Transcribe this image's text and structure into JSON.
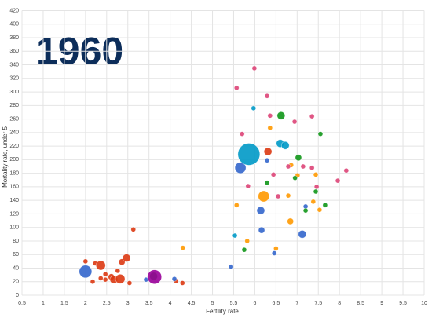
{
  "chart_data": {
    "type": "scatter",
    "annotation": "1960",
    "x_label": "Fertility rate",
    "y_label": "Mortality rate, under 5",
    "xlim": [
      0.5,
      10
    ],
    "ylim": [
      0,
      420
    ],
    "xticks": [
      0.5,
      1,
      1.5,
      2,
      2.5,
      3,
      3.5,
      4,
      4.5,
      5,
      5.5,
      6,
      6.5,
      7,
      7.5,
      8,
      8.5,
      9,
      9.5,
      10
    ],
    "yticks": [
      0,
      20,
      40,
      60,
      80,
      100,
      120,
      140,
      160,
      180,
      200,
      220,
      240,
      260,
      280,
      300,
      320,
      340,
      360,
      380,
      400,
      420
    ],
    "grid": true,
    "series": [
      {
        "color": "#dc3912",
        "x": [
          2.0,
          2.23,
          2.36,
          2.47,
          2.47,
          2.61,
          2.67,
          2.76,
          2.82,
          2.86,
          2.97,
          3.13,
          3.04,
          2.17,
          4.29,
          2.36,
          4.14,
          6.31
        ],
        "values": [
          50,
          47,
          44,
          31,
          23,
          27,
          23,
          36,
          24,
          49,
          55,
          97,
          18,
          20,
          18,
          25,
          21,
          212
        ],
        "sizes": [
          3,
          3,
          6,
          3,
          3,
          4,
          5,
          3,
          6,
          4,
          5,
          3,
          3,
          3,
          3,
          3,
          3,
          5
        ]
      },
      {
        "color": "#3366cc",
        "x": [
          2.0,
          3.43,
          4.1,
          5.66,
          6.14,
          6.16,
          7.12,
          6.46,
          5.44,
          6.29,
          7.2
        ],
        "values": [
          35,
          23,
          24,
          188,
          125,
          96,
          90,
          62,
          42,
          199,
          131
        ],
        "sizes": [
          8,
          3,
          3,
          7,
          5,
          4,
          5,
          3,
          3,
          3,
          3
        ]
      },
      {
        "color": "#0099c6",
        "x": [
          5.86,
          6.6,
          6.72,
          5.97,
          5.53
        ],
        "values": [
          208,
          224,
          221,
          276,
          88
        ],
        "sizes": [
          14,
          5,
          5,
          3,
          3
        ]
      },
      {
        "color": "#ff9900",
        "x": [
          4.3,
          6.21,
          5.57,
          6.36,
          6.86,
          7.01,
          6.79,
          6.84,
          7.38,
          7.53,
          5.82,
          6.5,
          7.44
        ],
        "values": [
          70,
          146,
          133,
          247,
          192,
          177,
          147,
          109,
          138,
          126,
          80,
          69,
          178
        ],
        "sizes": [
          3,
          7,
          3,
          3,
          3,
          3,
          3,
          4,
          3,
          3,
          3,
          3,
          3
        ]
      },
      {
        "color": "#109618",
        "x": [
          3.61,
          6.62,
          7.55,
          7.03,
          6.95,
          7.44,
          7.66,
          7.2,
          5.75,
          6.29
        ],
        "values": [
          28,
          265,
          238,
          203,
          173,
          153,
          133,
          125,
          67,
          166
        ],
        "sizes": [
          5,
          5,
          3,
          4,
          3,
          3,
          3,
          3,
          3,
          3
        ]
      },
      {
        "color": "#dd4477",
        "x": [
          5.99,
          5.57,
          6.29,
          6.36,
          6.94,
          7.35,
          5.7,
          5.84,
          6.44,
          6.55,
          6.79,
          7.14,
          7.35,
          8.16,
          7.96,
          7.46
        ],
        "values": [
          335,
          306,
          294,
          265,
          256,
          264,
          238,
          161,
          178,
          146,
          190,
          190,
          188,
          184,
          169,
          160
        ],
        "sizes": [
          3,
          3,
          3,
          3,
          3,
          3,
          3,
          3,
          3,
          3,
          3,
          3,
          3,
          3,
          3,
          3
        ]
      },
      {
        "color": "#990099",
        "x": [
          3.63
        ],
        "values": [
          27
        ],
        "sizes": [
          9
        ]
      }
    ]
  }
}
